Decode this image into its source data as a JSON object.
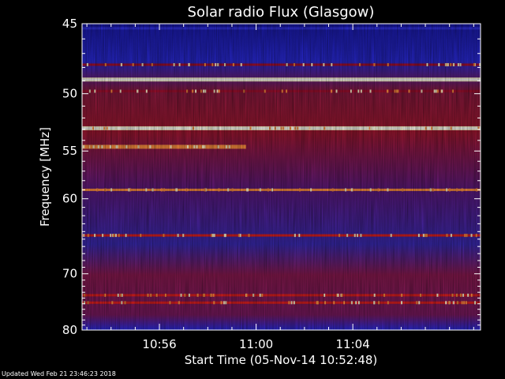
{
  "chart_data": {
    "type": "heatmap",
    "title": "Solar radio Flux (Glasgow)",
    "xlabel": "Start Time (05-Nov-14 10:52:48)",
    "ylabel": "Frequency [MHz]",
    "x_ticks": [
      "10:56",
      "11:00",
      "11:04"
    ],
    "y_ticks": [
      45,
      50,
      55,
      60,
      70,
      80
    ],
    "ylim": [
      45,
      80
    ],
    "y_scale": "reciprocal",
    "xlim": [
      "10:52:48",
      "11:09:17"
    ],
    "colormap": [
      "#2020a0",
      "#3030e0",
      "#a01030",
      "#e02020",
      "#ff9040",
      "#fff6d0"
    ],
    "bands": [
      {
        "freq": 45.3,
        "start": "10:52:48",
        "end": "11:09:17",
        "level": 0.15
      },
      {
        "freq": 47.8,
        "start": "10:52:48",
        "end": "11:09:17",
        "level": 0.45
      },
      {
        "freq": 48.9,
        "start": "10:52:48",
        "end": "11:09:17",
        "level": 1.0
      },
      {
        "freq": 49.8,
        "start": "10:52:48",
        "end": "11:09:17",
        "level": 0.45
      },
      {
        "freq": 52.9,
        "start": "10:52:48",
        "end": "11:09:17",
        "level": 0.9
      },
      {
        "freq": 54.6,
        "start": "10:52:48",
        "end": "10:59:35",
        "level": 0.85
      },
      {
        "freq": 59.0,
        "start": "10:52:48",
        "end": "11:09:17",
        "level": 0.7
      },
      {
        "freq": 64.5,
        "start": "10:52:48",
        "end": "11:09:17",
        "level": 0.6
      },
      {
        "freq": 73.5,
        "start": "10:52:48",
        "end": "11:09:17",
        "level": 0.55
      },
      {
        "freq": 74.8,
        "start": "10:52:48",
        "end": "11:09:17",
        "level": 0.6
      }
    ],
    "grid": false
  },
  "footer": "Updated Wed Feb 21 23:46:23 2018"
}
